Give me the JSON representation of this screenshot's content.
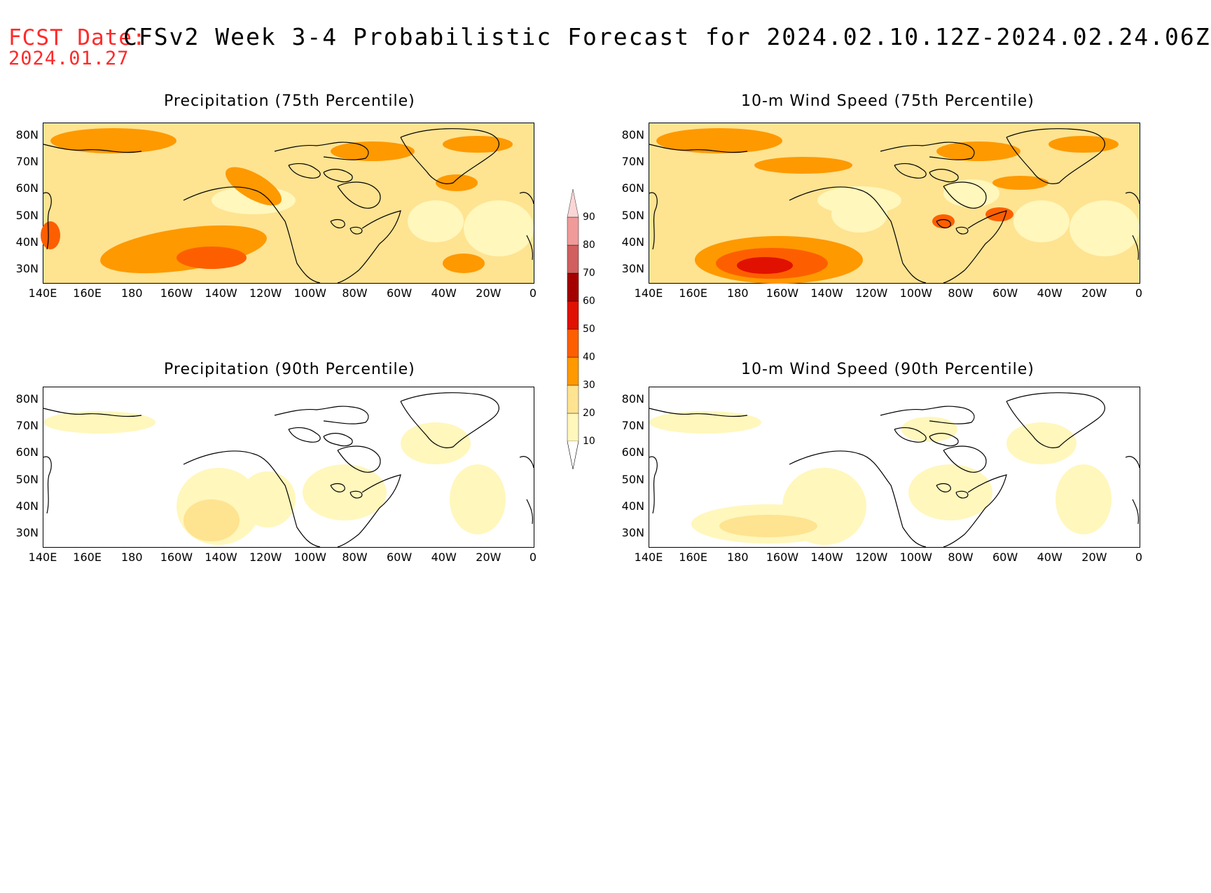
{
  "header": {
    "label": "FCST Date:",
    "title": "CFSv2 Week 3-4 Probabilistic Forecast for 2024.02.10.12Z-2024.02.24.06Z",
    "date": "2024.01.27"
  },
  "panels": [
    {
      "title": "Precipitation (75th Percentile)",
      "intensity": "high"
    },
    {
      "title": "10-m Wind Speed (75th Percentile)",
      "intensity": "high"
    },
    {
      "title": "Precipitation (90th Percentile)",
      "intensity": "low"
    },
    {
      "title": "10-m Wind Speed (90th Percentile)",
      "intensity": "low"
    }
  ],
  "axes": {
    "lat_labels": [
      "80N",
      "70N",
      "60N",
      "50N",
      "40N",
      "30N"
    ],
    "lon_labels": [
      "140E",
      "160E",
      "180",
      "160W",
      "140W",
      "120W",
      "100W",
      "80W",
      "60W",
      "40W",
      "20W",
      "0"
    ]
  },
  "colorbar": {
    "levels": [
      "10",
      "20",
      "30",
      "40",
      "50",
      "60",
      "70",
      "80",
      "90"
    ],
    "colors": [
      "#fff7bc",
      "#fee391",
      "#fe9900",
      "#fd5f00",
      "#e01100",
      "#a40000",
      "#d15f5f",
      "#f09a9a",
      "#fbd6d6"
    ]
  }
}
